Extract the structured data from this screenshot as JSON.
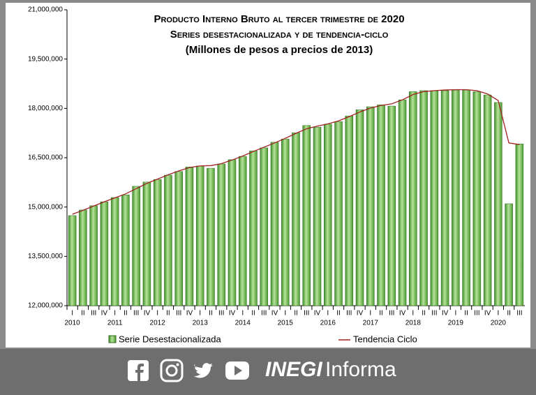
{
  "chart_data": {
    "type": "bar",
    "title": "Producto Interno Bruto  al tercer trimestre de 2020",
    "subtitle": "Series desestacionalizada y de tendencia-ciclo",
    "subtitle2": "(Millones de pesos a precios de 2013)",
    "categories": [
      "I",
      "II",
      "III",
      "IV",
      "I",
      "II",
      "III",
      "IV",
      "I",
      "II",
      "III",
      "IV",
      "I",
      "II",
      "III",
      "IV",
      "I",
      "II",
      "III",
      "IV",
      "I",
      "II",
      "III",
      "IV",
      "I",
      "II",
      "III",
      "IV",
      "I",
      "II",
      "III",
      "IV",
      "I",
      "II",
      "III",
      "IV",
      "I",
      "II",
      "III",
      "IV",
      "I",
      "II",
      "III"
    ],
    "years": [
      "2010",
      "2011",
      "2012",
      "2013",
      "2014",
      "2015",
      "2016",
      "2017",
      "2018",
      "2019",
      "2020"
    ],
    "series": [
      {
        "name": "Serie Desestacionalizada",
        "color": "#6fbf4a",
        "values": [
          14740000,
          14910000,
          15040000,
          15160000,
          15290000,
          15370000,
          15630000,
          15760000,
          15840000,
          15970000,
          16080000,
          16220000,
          16250000,
          16180000,
          16310000,
          16440000,
          16540000,
          16710000,
          16800000,
          16970000,
          17070000,
          17260000,
          17480000,
          17430000,
          17520000,
          17600000,
          17770000,
          17960000,
          18050000,
          18110000,
          18070000,
          18260000,
          18510000,
          18540000,
          18540000,
          18540000,
          18560000,
          18560000,
          18510000,
          18410000,
          18180000,
          15100000,
          16920000
        ]
      },
      {
        "name": "Tendencia Ciclo",
        "color": "#a02020",
        "values": [
          14780000,
          14900000,
          15030000,
          15160000,
          15280000,
          15400000,
          15560000,
          15720000,
          15850000,
          15980000,
          16100000,
          16200000,
          16250000,
          16260000,
          16320000,
          16430000,
          16550000,
          16690000,
          16820000,
          16950000,
          17090000,
          17240000,
          17380000,
          17460000,
          17530000,
          17620000,
          17750000,
          17890000,
          18010000,
          18090000,
          18140000,
          18260000,
          18420000,
          18510000,
          18540000,
          18560000,
          18570000,
          18570000,
          18540000,
          18440000,
          18240000,
          16950000,
          16900000
        ]
      }
    ],
    "ylim": [
      12000000,
      21000000
    ],
    "yticks": [
      {
        "value": 12000000,
        "label": "12,000,000"
      },
      {
        "value": 13500000,
        "label": "13,500,000"
      },
      {
        "value": 15000000,
        "label": "15,000,000"
      },
      {
        "value": 16500000,
        "label": "16,500,000"
      },
      {
        "value": 18000000,
        "label": "18,000,000"
      },
      {
        "value": 19500000,
        "label": "19,500,000"
      },
      {
        "value": 21000000,
        "label": "21,000,000"
      }
    ]
  },
  "footer": {
    "brand_bold": "INEGI",
    "brand": "Informa"
  }
}
